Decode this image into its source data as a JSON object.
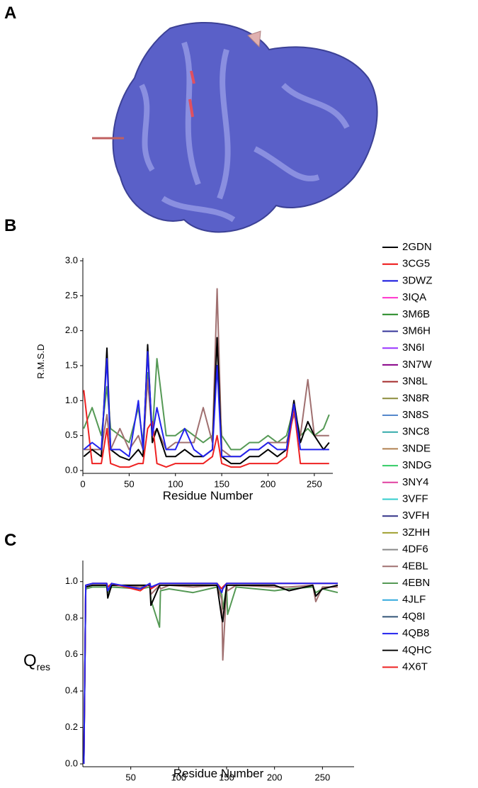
{
  "panels": [
    "A",
    "B",
    "C"
  ],
  "legend": [
    {
      "name": "2GDN",
      "color": "#000000"
    },
    {
      "name": "3CG5",
      "color": "#ee1111"
    },
    {
      "name": "3DWZ",
      "color": "#1111dd"
    },
    {
      "name": "3IQA",
      "color": "#ff33cc"
    },
    {
      "name": "3M6B",
      "color": "#228822"
    },
    {
      "name": "3M6H",
      "color": "#333399"
    },
    {
      "name": "3N6I",
      "color": "#9933ff"
    },
    {
      "name": "3N7W",
      "color": "#880088"
    },
    {
      "name": "3N8L",
      "color": "#a52a2a"
    },
    {
      "name": "3N8R",
      "color": "#8b8b3a"
    },
    {
      "name": "3N8S",
      "color": "#5588cc"
    },
    {
      "name": "3NC8",
      "color": "#33aaaa"
    },
    {
      "name": "3NDE",
      "color": "#b08050"
    },
    {
      "name": "3NDG",
      "color": "#33cc66"
    },
    {
      "name": "3NY4",
      "color": "#e040a0"
    },
    {
      "name": "3VFF",
      "color": "#33cccc"
    },
    {
      "name": "3VFH",
      "color": "#333388"
    },
    {
      "name": "3ZHH",
      "color": "#a0a030"
    },
    {
      "name": "4DF6",
      "color": "#888888"
    },
    {
      "name": "4EBL",
      "color": "#a07070"
    },
    {
      "name": "4EBN",
      "color": "#559955"
    },
    {
      "name": "4JLF",
      "color": "#33aadd"
    },
    {
      "name": "4Q8I",
      "color": "#335577"
    },
    {
      "name": "4QB8",
      "color": "#2222ee"
    },
    {
      "name": "4QHC",
      "color": "#111111"
    },
    {
      "name": "4X6T",
      "color": "#ee2222"
    }
  ],
  "chart_data": [
    {
      "type": "line",
      "xlabel": "Residue Number",
      "ylabel": "R.M.S.D",
      "xlim": [
        0,
        270
      ],
      "ylim": [
        0,
        3
      ],
      "xticks": [
        0,
        50,
        100,
        150,
        200,
        250
      ],
      "yticks": [
        {
          "value": 0,
          "label": "0.0"
        },
        {
          "value": 0.5,
          "label": "0.5"
        },
        {
          "value": 1,
          "label": "1.0"
        },
        {
          "value": 1.5,
          "label": "1.5"
        },
        {
          "value": 2,
          "label": "2.0"
        },
        {
          "value": 2.5,
          "label": "2.5"
        },
        {
          "value": 3,
          "label": "3.0"
        }
      ],
      "x": [
        1,
        10,
        20,
        26,
        30,
        40,
        50,
        60,
        65,
        70,
        75,
        80,
        90,
        100,
        110,
        120,
        130,
        140,
        145,
        150,
        160,
        170,
        180,
        190,
        200,
        210,
        220,
        228,
        235,
        243,
        250,
        260,
        266
      ],
      "series": [
        {
          "name": "4EBN",
          "color": "#559955",
          "values": [
            0.6,
            0.9,
            0.5,
            1.2,
            0.6,
            0.5,
            0.4,
            0.9,
            0.4,
            1.4,
            0.5,
            1.6,
            0.5,
            0.5,
            0.6,
            0.5,
            0.4,
            0.5,
            1.5,
            0.5,
            0.3,
            0.3,
            0.4,
            0.4,
            0.5,
            0.4,
            0.5,
            0.9,
            0.5,
            0.6,
            0.5,
            0.6,
            0.8
          ]
        },
        {
          "name": "4EBL",
          "color": "#a07070",
          "values": [
            0.3,
            0.3,
            0.3,
            0.8,
            0.3,
            0.6,
            0.3,
            0.5,
            0.3,
            1.3,
            0.5,
            0.6,
            0.3,
            0.4,
            0.4,
            0.4,
            0.9,
            0.4,
            2.6,
            0.3,
            0.2,
            0.2,
            0.3,
            0.3,
            0.4,
            0.4,
            0.4,
            0.8,
            0.5,
            1.3,
            0.5,
            0.5,
            0.5
          ]
        },
        {
          "name": "2GDN",
          "color": "#000000",
          "values": [
            0.2,
            0.3,
            0.2,
            1.75,
            0.3,
            0.2,
            0.15,
            0.3,
            0.2,
            1.8,
            0.4,
            0.6,
            0.2,
            0.2,
            0.3,
            0.2,
            0.2,
            0.3,
            1.9,
            0.2,
            0.1,
            0.1,
            0.2,
            0.2,
            0.3,
            0.2,
            0.3,
            1.0,
            0.4,
            0.7,
            0.5,
            0.3,
            0.4
          ]
        },
        {
          "name": "4X6T",
          "color": "#ee2222",
          "values": [
            1.15,
            0.1,
            0.1,
            0.6,
            0.1,
            0.05,
            0.05,
            0.1,
            0.1,
            0.6,
            0.7,
            0.1,
            0.05,
            0.1,
            0.1,
            0.1,
            0.1,
            0.2,
            0.5,
            0.1,
            0.05,
            0.05,
            0.1,
            0.1,
            0.1,
            0.1,
            0.2,
            0.9,
            0.1,
            0.1,
            0.1,
            0.1,
            0.1
          ]
        },
        {
          "name": "4QB8",
          "color": "#2222ee",
          "values": [
            0.3,
            0.4,
            0.3,
            1.6,
            0.3,
            0.3,
            0.2,
            1.0,
            0.3,
            1.7,
            0.5,
            0.9,
            0.3,
            0.3,
            0.6,
            0.3,
            0.2,
            0.3,
            1.5,
            0.2,
            0.2,
            0.2,
            0.3,
            0.3,
            0.4,
            0.3,
            0.3,
            0.95,
            0.3,
            0.3,
            0.3,
            0.3,
            0.3
          ]
        }
      ]
    },
    {
      "type": "line",
      "xlabel": "Residue Number",
      "ylabel": "Q",
      "ylabel_sub": "res",
      "xlim": [
        0,
        283
      ],
      "ylim": [
        0,
        1.1
      ],
      "xticks": [
        50,
        100,
        150,
        200,
        250
      ],
      "yticks": [
        {
          "value": 0,
          "label": "0.0"
        },
        {
          "value": 0.2,
          "label": "0.2"
        },
        {
          "value": 0.4,
          "label": "0.4"
        },
        {
          "value": 0.6,
          "label": "0.6"
        },
        {
          "value": 0.8,
          "label": "0.8"
        },
        {
          "value": 1,
          "label": "1.0"
        }
      ],
      "x": [
        1,
        3,
        10,
        25,
        26,
        30,
        60,
        70,
        71,
        80,
        81,
        90,
        115,
        140,
        145,
        146,
        150,
        151,
        160,
        200,
        215,
        240,
        243,
        250,
        266
      ],
      "series": [
        {
          "name": "4EBN",
          "color": "#559955",
          "values": [
            0,
            0.96,
            0.97,
            0.97,
            0.94,
            0.97,
            0.96,
            0.97,
            0.9,
            0.75,
            0.95,
            0.96,
            0.94,
            0.97,
            0.93,
            0.85,
            0.97,
            0.82,
            0.97,
            0.95,
            0.96,
            0.97,
            0.94,
            0.96,
            0.94
          ]
        },
        {
          "name": "4EBL",
          "color": "#a07070",
          "values": [
            0,
            0.97,
            0.98,
            0.98,
            0.95,
            0.98,
            0.97,
            0.98,
            0.93,
            0.98,
            0.96,
            0.98,
            0.97,
            0.98,
            0.9,
            0.57,
            0.98,
            0.95,
            0.98,
            0.97,
            0.97,
            0.98,
            0.89,
            0.97,
            0.97
          ]
        },
        {
          "name": "2GDN",
          "color": "#000000",
          "values": [
            0,
            0.97,
            0.98,
            0.98,
            0.91,
            0.98,
            0.98,
            0.98,
            0.87,
            0.98,
            0.98,
            0.98,
            0.98,
            0.98,
            0.8,
            0.78,
            0.98,
            0.98,
            0.98,
            0.98,
            0.95,
            0.98,
            0.92,
            0.96,
            0.98
          ]
        },
        {
          "name": "4X6T",
          "color": "#ee2222",
          "values": [
            0,
            0.98,
            0.99,
            0.99,
            0.97,
            0.99,
            0.95,
            0.99,
            0.96,
            0.99,
            0.99,
            0.99,
            0.99,
            0.99,
            0.96,
            0.97,
            0.99,
            0.99,
            0.99,
            0.99,
            0.99,
            0.99,
            0.99,
            0.99,
            0.99
          ]
        },
        {
          "name": "4QB8",
          "color": "#2222ee",
          "values": [
            0,
            0.98,
            0.99,
            0.99,
            0.95,
            0.99,
            0.96,
            0.99,
            0.97,
            0.99,
            0.99,
            0.99,
            0.99,
            0.99,
            0.94,
            0.96,
            0.99,
            0.99,
            0.99,
            0.99,
            0.99,
            0.99,
            0.99,
            0.99,
            0.99
          ]
        }
      ]
    }
  ]
}
